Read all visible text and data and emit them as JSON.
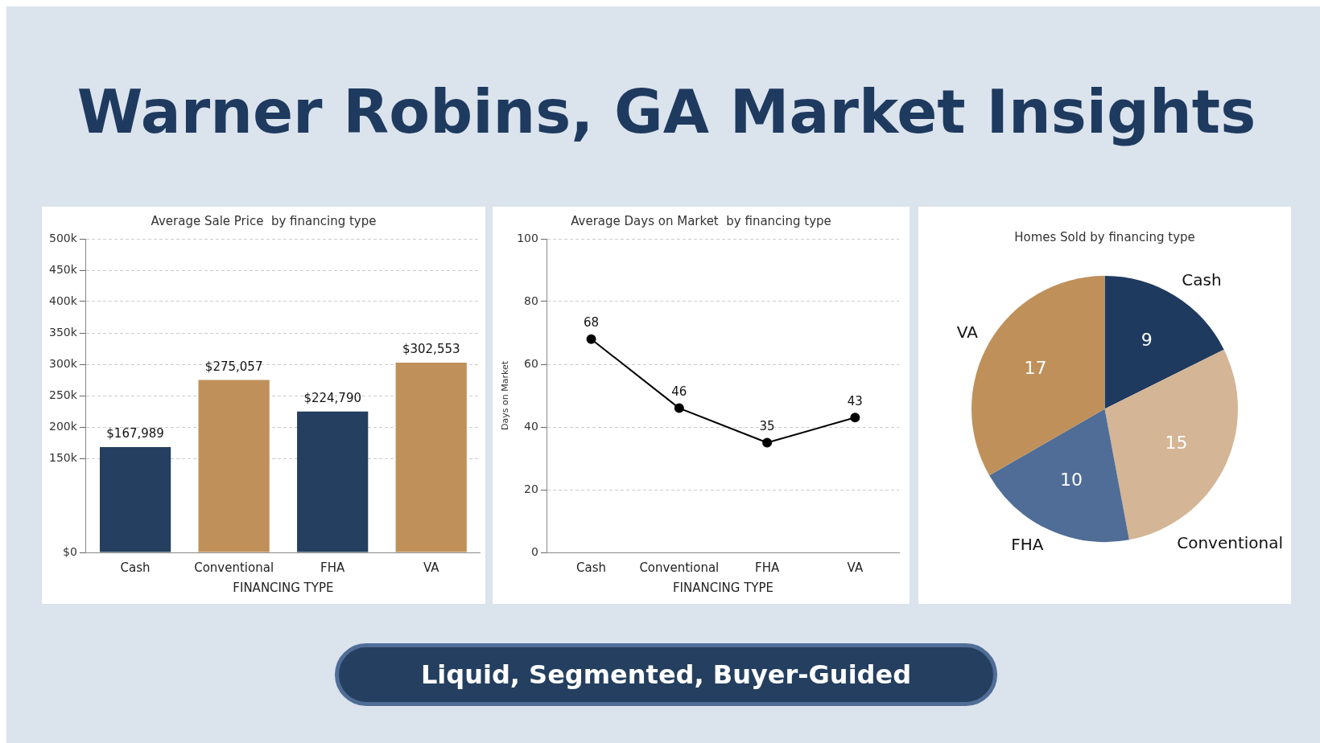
{
  "chart_data": [
    {
      "type": "other",
      "title": "Warner Robins, GA Market Insights",
      "annotations": [
        "Liquid, Segmented, Buyer-Guided"
      ]
    },
    {
      "type": "bar",
      "title": "Average Sale Price  by financing type",
      "xlabel": "FINANCING TYPE",
      "categories": [
        "Cash",
        "Conventional",
        "FHA",
        "VA"
      ],
      "values": [
        167989,
        275057,
        224790,
        302553
      ],
      "colors": [
        "#243f5f",
        "#c0905a",
        "#243f5f",
        "#c0905a"
      ],
      "value_labels": [
        "$167,989",
        "$275,057",
        "$224,790",
        "$302,553"
      ],
      "ylim": [
        0,
        500000
      ],
      "yticks": [
        {
          "value": 0,
          "label": "$0"
        },
        {
          "value": 150000,
          "label": "150k"
        },
        {
          "value": 200000,
          "label": "200k"
        },
        {
          "value": 250000,
          "label": "250k"
        },
        {
          "value": 300000,
          "label": "300k"
        },
        {
          "value": 350000,
          "label": "350k"
        },
        {
          "value": 400000,
          "label": "400k"
        },
        {
          "value": 450000,
          "label": "450k"
        },
        {
          "value": 500000,
          "label": "500k"
        }
      ],
      "grid": "y"
    },
    {
      "type": "line",
      "title": "Average Days on Market  by financing type",
      "xlabel": "FINANCING TYPE",
      "ylabel": "Days on Market",
      "categories": [
        "Cash",
        "Conventional",
        "FHA",
        "VA"
      ],
      "series": [
        {
          "color": "#000000",
          "values": [
            68,
            46,
            35,
            43
          ]
        }
      ],
      "marker": "circle",
      "data_labels": true,
      "ylim": [
        0,
        100
      ],
      "yticks": [
        0,
        20,
        40,
        60,
        80,
        100
      ],
      "grid": "y"
    },
    {
      "type": "pie",
      "title": "Homes Sold by financing type",
      "categories": [
        "Cash",
        "Conventional",
        "FHA",
        "VA"
      ],
      "values": [
        9,
        15,
        10,
        17
      ],
      "colors": [
        "#1f3a5f",
        "#d4b595",
        "#4f6d96",
        "#c0905a"
      ],
      "data_labels": true
    }
  ]
}
